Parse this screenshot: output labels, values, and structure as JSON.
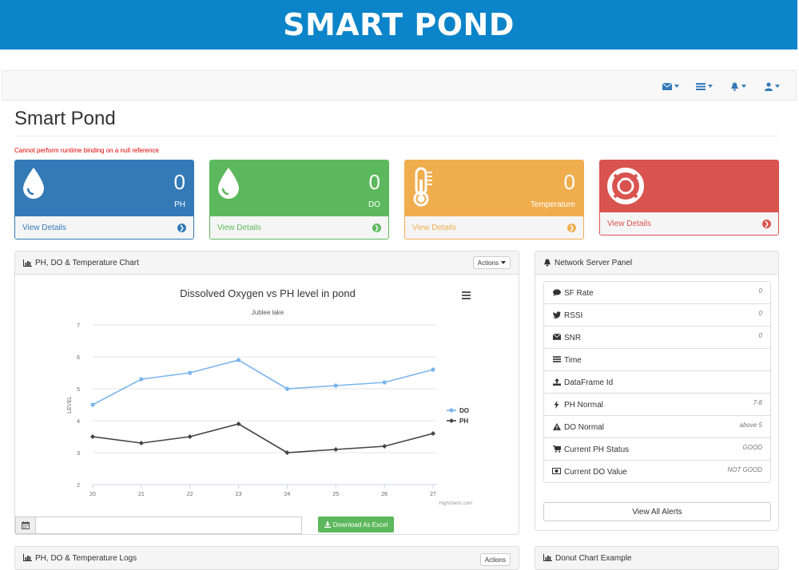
{
  "banner": {
    "title": "SMART POND"
  },
  "navbar": {
    "icons": [
      "envelope-icon",
      "tasks-icon",
      "bell-icon",
      "user-icon"
    ]
  },
  "page": {
    "title": "Smart Pond",
    "error": "Cannot perform runtime binding on a null reference"
  },
  "stats": [
    {
      "value": "0",
      "label": "PH",
      "link": "View Details",
      "color": "#337ab7",
      "icon": "drop-icon"
    },
    {
      "value": "0",
      "label": "DO",
      "link": "View Details",
      "color": "#5cb85c",
      "icon": "drop-icon"
    },
    {
      "value": "0",
      "label": "Temperature",
      "link": "View Details",
      "color": "#f0ad4e",
      "icon": "thermometer-icon"
    },
    {
      "value": "",
      "label": "",
      "link": "View Details",
      "color": "#d9534f",
      "icon": "life-ring-icon"
    }
  ],
  "chart_panel": {
    "title": "PH, DO & Temperature Chart",
    "actions_label": "Actions",
    "download_label": "Download As Excel",
    "date_value": ""
  },
  "chart_data": {
    "type": "line",
    "title": "Dissolved Oxygen vs PH level in pond",
    "subtitle": "Jublee lake",
    "xlabel": "",
    "ylabel": "LEVEL",
    "credits": "Highcharts.com",
    "x": [
      "20",
      "21",
      "22",
      "23",
      "24",
      "25",
      "26",
      "27"
    ],
    "yticks": [
      "2",
      "3",
      "4",
      "5",
      "6",
      "7"
    ],
    "ylim": [
      2,
      7
    ],
    "grid": true,
    "legend": "right",
    "series": [
      {
        "name": "DO",
        "color": "#7cb5ec",
        "values": [
          4.5,
          5.3,
          5.5,
          5.9,
          5.0,
          5.1,
          5.2,
          5.6
        ]
      },
      {
        "name": "PH",
        "color": "#434348",
        "values": [
          3.5,
          3.3,
          3.5,
          3.9,
          3.0,
          3.1,
          3.2,
          3.6
        ]
      }
    ]
  },
  "network_panel": {
    "title": "Network Server Panel",
    "items": [
      {
        "icon": "comment-icon",
        "label": "SF Rate",
        "value": "0"
      },
      {
        "icon": "twitter-icon",
        "label": "RSSI",
        "value": "0"
      },
      {
        "icon": "envelope-icon",
        "label": "SNR",
        "value": "0"
      },
      {
        "icon": "tasks-icon",
        "label": "Time",
        "value": ""
      },
      {
        "icon": "upload-icon",
        "label": "DataFrame Id",
        "value": ""
      },
      {
        "icon": "bolt-icon",
        "label": "PH Normal",
        "value": "7-8"
      },
      {
        "icon": "warning-icon",
        "label": "DO Normal",
        "value": "above 5"
      },
      {
        "icon": "shopping-cart-icon",
        "label": "Current PH Status",
        "value": "GOOD"
      },
      {
        "icon": "money-icon",
        "label": "Current DO Value",
        "value": "NOT GOOD"
      }
    ],
    "button": "View All Alerts"
  },
  "bottom": {
    "logs_title": "PH, DO & Temperature Logs",
    "logs_actions": "Actions",
    "donut_title": "Donut Chart Example"
  }
}
